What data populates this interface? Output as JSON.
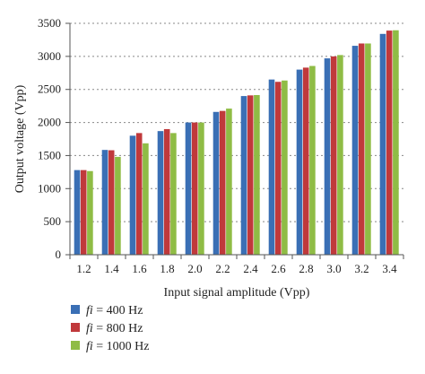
{
  "chart_data": {
    "type": "bar",
    "categories": [
      "1.2",
      "1.4",
      "1.6",
      "1.8",
      "2.0",
      "2.2",
      "2.4",
      "2.6",
      "2.8",
      "3.0",
      "3.2",
      "3.4"
    ],
    "series": [
      {
        "name_var": "fi",
        "name_rest": " = 400 Hz",
        "color": "#3a6fb5",
        "values": [
          1280,
          1585,
          1800,
          1870,
          2000,
          2160,
          2400,
          2650,
          2800,
          2970,
          3160,
          3340
        ]
      },
      {
        "name_var": "fi",
        "name_rest": " = 800 Hz",
        "color": "#c0393b",
        "values": [
          1280,
          1580,
          1840,
          1900,
          2000,
          2175,
          2410,
          2615,
          2830,
          3000,
          3195,
          3390
        ]
      },
      {
        "name_var": "fi",
        "name_rest": " = 1000 Hz",
        "color": "#8fbc45",
        "values": [
          1265,
          1480,
          1685,
          1840,
          2000,
          2210,
          2415,
          2635,
          2855,
          3020,
          3195,
          3395
        ]
      }
    ],
    "xlabel": "Input signal amplitude (Vpp)",
    "ylabel": "Output voltage (Vpp)",
    "ylim": [
      0,
      3500
    ],
    "yticks": [
      "0",
      "500",
      "1000",
      "1500",
      "2000",
      "2500",
      "3000",
      "3500"
    ],
    "grid": "horizontal dashed",
    "legend_position": "bottom-left"
  }
}
